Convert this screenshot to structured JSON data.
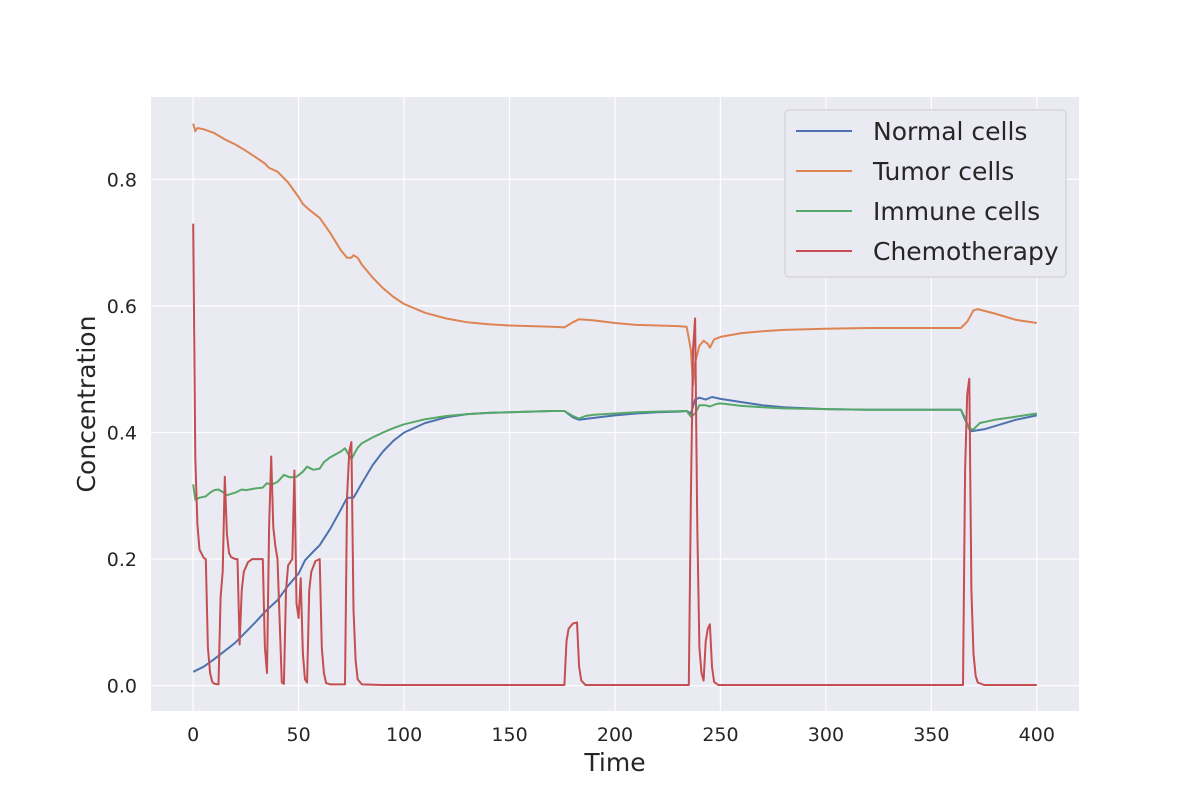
{
  "chart_data": {
    "type": "line",
    "title": "",
    "xlabel": "Time",
    "ylabel": "Concentration",
    "xlim": [
      -20,
      420
    ],
    "ylim": [
      -0.04,
      0.93
    ],
    "xticks": [
      0,
      50,
      100,
      150,
      200,
      250,
      300,
      350,
      400
    ],
    "yticks": [
      0.0,
      0.2,
      0.4,
      0.6,
      0.8
    ],
    "xtick_labels": [
      "0",
      "50",
      "100",
      "150",
      "200",
      "250",
      "300",
      "350",
      "400"
    ],
    "ytick_labels": [
      "0.0",
      "0.2",
      "0.4",
      "0.6",
      "0.8"
    ],
    "grid": true,
    "legend_position": "top-right",
    "series": [
      {
        "name": "Normal cells",
        "color": "#4C72B0",
        "points": [
          [
            0,
            0.022
          ],
          [
            5,
            0.03
          ],
          [
            10,
            0.042
          ],
          [
            15,
            0.055
          ],
          [
            20,
            0.068
          ],
          [
            25,
            0.085
          ],
          [
            30,
            0.102
          ],
          [
            35,
            0.12
          ],
          [
            40,
            0.135
          ],
          [
            45,
            0.158
          ],
          [
            50,
            0.177
          ],
          [
            53,
            0.198
          ],
          [
            57,
            0.212
          ],
          [
            60,
            0.222
          ],
          [
            65,
            0.248
          ],
          [
            70,
            0.278
          ],
          [
            73,
            0.297
          ],
          [
            76,
            0.297
          ],
          [
            80,
            0.32
          ],
          [
            85,
            0.348
          ],
          [
            90,
            0.37
          ],
          [
            95,
            0.387
          ],
          [
            100,
            0.4
          ],
          [
            110,
            0.415
          ],
          [
            120,
            0.424
          ],
          [
            130,
            0.429
          ],
          [
            140,
            0.431
          ],
          [
            150,
            0.432
          ],
          [
            160,
            0.433
          ],
          [
            170,
            0.434
          ],
          [
            176,
            0.434
          ],
          [
            180,
            0.424
          ],
          [
            183,
            0.42
          ],
          [
            190,
            0.423
          ],
          [
            200,
            0.427
          ],
          [
            210,
            0.43
          ],
          [
            220,
            0.432
          ],
          [
            230,
            0.433
          ],
          [
            234,
            0.434
          ],
          [
            236,
            0.43
          ],
          [
            238,
            0.452
          ],
          [
            240,
            0.455
          ],
          [
            243,
            0.452
          ],
          [
            246,
            0.456
          ],
          [
            250,
            0.453
          ],
          [
            260,
            0.448
          ],
          [
            270,
            0.443
          ],
          [
            280,
            0.44
          ],
          [
            300,
            0.437
          ],
          [
            320,
            0.436
          ],
          [
            340,
            0.436
          ],
          [
            364,
            0.436
          ],
          [
            366,
            0.42
          ],
          [
            369,
            0.402
          ],
          [
            375,
            0.405
          ],
          [
            380,
            0.41
          ],
          [
            390,
            0.42
          ],
          [
            400,
            0.427
          ]
        ]
      },
      {
        "name": "Tumor cells",
        "color": "#DD8452",
        "points": [
          [
            0,
            0.888
          ],
          [
            1,
            0.876
          ],
          [
            2,
            0.881
          ],
          [
            5,
            0.879
          ],
          [
            10,
            0.873
          ],
          [
            15,
            0.863
          ],
          [
            20,
            0.855
          ],
          [
            25,
            0.845
          ],
          [
            30,
            0.834
          ],
          [
            34,
            0.825
          ],
          [
            36,
            0.818
          ],
          [
            40,
            0.812
          ],
          [
            45,
            0.795
          ],
          [
            50,
            0.772
          ],
          [
            52,
            0.761
          ],
          [
            55,
            0.752
          ],
          [
            60,
            0.739
          ],
          [
            65,
            0.715
          ],
          [
            70,
            0.688
          ],
          [
            73,
            0.676
          ],
          [
            75,
            0.676
          ],
          [
            76,
            0.68
          ],
          [
            78,
            0.676
          ],
          [
            80,
            0.665
          ],
          [
            85,
            0.645
          ],
          [
            90,
            0.628
          ],
          [
            95,
            0.614
          ],
          [
            100,
            0.603
          ],
          [
            110,
            0.589
          ],
          [
            120,
            0.58
          ],
          [
            130,
            0.574
          ],
          [
            140,
            0.571
          ],
          [
            150,
            0.569
          ],
          [
            160,
            0.568
          ],
          [
            170,
            0.567
          ],
          [
            176,
            0.566
          ],
          [
            180,
            0.574
          ],
          [
            183,
            0.579
          ],
          [
            190,
            0.577
          ],
          [
            200,
            0.573
          ],
          [
            210,
            0.57
          ],
          [
            220,
            0.569
          ],
          [
            230,
            0.568
          ],
          [
            234,
            0.567
          ],
          [
            236,
            0.53
          ],
          [
            237,
            0.475
          ],
          [
            238,
            0.51
          ],
          [
            240,
            0.537
          ],
          [
            242,
            0.545
          ],
          [
            244,
            0.54
          ],
          [
            245,
            0.534
          ],
          [
            247,
            0.547
          ],
          [
            250,
            0.551
          ],
          [
            260,
            0.557
          ],
          [
            270,
            0.56
          ],
          [
            280,
            0.562
          ],
          [
            300,
            0.564
          ],
          [
            320,
            0.565
          ],
          [
            340,
            0.565
          ],
          [
            364,
            0.565
          ],
          [
            367,
            0.575
          ],
          [
            370,
            0.593
          ],
          [
            372,
            0.595
          ],
          [
            380,
            0.588
          ],
          [
            390,
            0.578
          ],
          [
            400,
            0.573
          ]
        ]
      },
      {
        "name": "Immune cells",
        "color": "#55A868",
        "points": [
          [
            0,
            0.318
          ],
          [
            1,
            0.294
          ],
          [
            3,
            0.297
          ],
          [
            6,
            0.299
          ],
          [
            8,
            0.305
          ],
          [
            10,
            0.309
          ],
          [
            12,
            0.31
          ],
          [
            14,
            0.306
          ],
          [
            16,
            0.301
          ],
          [
            20,
            0.305
          ],
          [
            23,
            0.31
          ],
          [
            25,
            0.309
          ],
          [
            30,
            0.312
          ],
          [
            33,
            0.313
          ],
          [
            35,
            0.32
          ],
          [
            37,
            0.317
          ],
          [
            40,
            0.322
          ],
          [
            43,
            0.333
          ],
          [
            46,
            0.329
          ],
          [
            49,
            0.33
          ],
          [
            52,
            0.338
          ],
          [
            54,
            0.346
          ],
          [
            57,
            0.341
          ],
          [
            60,
            0.343
          ],
          [
            62,
            0.353
          ],
          [
            65,
            0.361
          ],
          [
            70,
            0.37
          ],
          [
            72,
            0.375
          ],
          [
            74,
            0.363
          ],
          [
            75,
            0.358
          ],
          [
            78,
            0.376
          ],
          [
            80,
            0.383
          ],
          [
            85,
            0.392
          ],
          [
            90,
            0.4
          ],
          [
            95,
            0.407
          ],
          [
            100,
            0.413
          ],
          [
            110,
            0.421
          ],
          [
            120,
            0.426
          ],
          [
            130,
            0.429
          ],
          [
            140,
            0.431
          ],
          [
            150,
            0.432
          ],
          [
            160,
            0.433
          ],
          [
            170,
            0.434
          ],
          [
            176,
            0.434
          ],
          [
            180,
            0.426
          ],
          [
            183,
            0.422
          ],
          [
            186,
            0.426
          ],
          [
            190,
            0.428
          ],
          [
            200,
            0.43
          ],
          [
            210,
            0.432
          ],
          [
            220,
            0.433
          ],
          [
            234,
            0.434
          ],
          [
            236,
            0.425
          ],
          [
            238,
            0.43
          ],
          [
            240,
            0.443
          ],
          [
            243,
            0.443
          ],
          [
            245,
            0.441
          ],
          [
            248,
            0.445
          ],
          [
            250,
            0.446
          ],
          [
            260,
            0.442
          ],
          [
            270,
            0.44
          ],
          [
            280,
            0.438
          ],
          [
            300,
            0.437
          ],
          [
            320,
            0.436
          ],
          [
            340,
            0.436
          ],
          [
            364,
            0.436
          ],
          [
            366,
            0.423
          ],
          [
            368,
            0.405
          ],
          [
            370,
            0.405
          ],
          [
            373,
            0.415
          ],
          [
            380,
            0.42
          ],
          [
            390,
            0.425
          ],
          [
            400,
            0.43
          ]
        ]
      },
      {
        "name": "Chemotherapy",
        "color": "#C44E52",
        "points": [
          [
            0,
            0.73
          ],
          [
            1,
            0.36
          ],
          [
            2,
            0.255
          ],
          [
            3,
            0.215
          ],
          [
            5,
            0.202
          ],
          [
            6,
            0.2
          ],
          [
            7,
            0.06
          ],
          [
            8,
            0.02
          ],
          [
            9,
            0.006
          ],
          [
            10,
            0.003
          ],
          [
            12,
            0.002
          ],
          [
            13,
            0.14
          ],
          [
            14,
            0.18
          ],
          [
            15,
            0.33
          ],
          [
            16,
            0.24
          ],
          [
            17,
            0.21
          ],
          [
            18,
            0.203
          ],
          [
            20,
            0.2
          ],
          [
            21,
            0.2
          ],
          [
            22,
            0.065
          ],
          [
            23,
            0.15
          ],
          [
            24,
            0.18
          ],
          [
            26,
            0.195
          ],
          [
            28,
            0.2
          ],
          [
            30,
            0.2
          ],
          [
            33,
            0.2
          ],
          [
            34,
            0.06
          ],
          [
            35,
            0.02
          ],
          [
            36,
            0.25
          ],
          [
            37,
            0.362
          ],
          [
            38,
            0.25
          ],
          [
            39,
            0.22
          ],
          [
            40,
            0.2
          ],
          [
            42,
            0.005
          ],
          [
            43,
            0.003
          ],
          [
            44,
            0.15
          ],
          [
            45,
            0.19
          ],
          [
            47,
            0.2
          ],
          [
            48,
            0.34
          ],
          [
            49,
            0.13
          ],
          [
            50,
            0.107
          ],
          [
            51,
            0.17
          ],
          [
            52,
            0.05
          ],
          [
            53,
            0.01
          ],
          [
            54,
            0.005
          ],
          [
            55,
            0.15
          ],
          [
            56,
            0.18
          ],
          [
            58,
            0.197
          ],
          [
            60,
            0.2
          ],
          [
            61,
            0.06
          ],
          [
            62,
            0.02
          ],
          [
            63,
            0.004
          ],
          [
            65,
            0.002
          ],
          [
            72,
            0.002
          ],
          [
            73,
            0.3
          ],
          [
            74,
            0.37
          ],
          [
            75,
            0.385
          ],
          [
            76,
            0.12
          ],
          [
            77,
            0.04
          ],
          [
            78,
            0.01
          ],
          [
            80,
            0.002
          ],
          [
            90,
            0.001
          ],
          [
            176,
            0.001
          ],
          [
            177,
            0.07
          ],
          [
            178,
            0.09
          ],
          [
            180,
            0.098
          ],
          [
            182,
            0.1
          ],
          [
            183,
            0.03
          ],
          [
            184,
            0.008
          ],
          [
            186,
            0.001
          ],
          [
            235,
            0.001
          ],
          [
            236,
            0.3
          ],
          [
            237,
            0.53
          ],
          [
            238,
            0.58
          ],
          [
            239,
            0.25
          ],
          [
            240,
            0.06
          ],
          [
            241,
            0.02
          ],
          [
            242,
            0.008
          ],
          [
            243,
            0.07
          ],
          [
            244,
            0.09
          ],
          [
            245,
            0.097
          ],
          [
            246,
            0.03
          ],
          [
            247,
            0.006
          ],
          [
            249,
            0.001
          ],
          [
            365,
            0.001
          ],
          [
            366,
            0.34
          ],
          [
            367,
            0.46
          ],
          [
            368,
            0.485
          ],
          [
            369,
            0.15
          ],
          [
            370,
            0.05
          ],
          [
            371,
            0.015
          ],
          [
            372,
            0.005
          ],
          [
            375,
            0.001
          ],
          [
            400,
            0.001
          ]
        ]
      }
    ]
  }
}
